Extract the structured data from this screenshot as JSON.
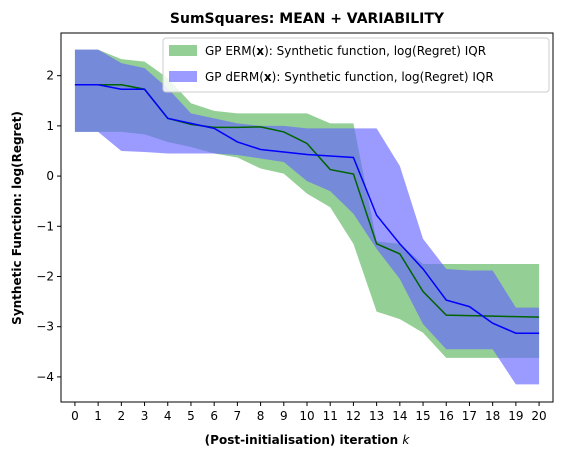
{
  "chart_data": {
    "type": "area",
    "title": "SumSquares: MEAN + VARIABILITY",
    "xlabel": "(Post-initialisation) iteration",
    "xlabel_var": "k",
    "ylabel": "Synthetic Function: log(Regret)",
    "xlim": [
      -0.6,
      20.6
    ],
    "ylim": [
      -4.5,
      2.85
    ],
    "xticks": [
      0,
      1,
      2,
      3,
      4,
      5,
      6,
      7,
      8,
      9,
      10,
      11,
      12,
      13,
      14,
      15,
      16,
      17,
      18,
      19,
      20
    ],
    "yticks": [
      -4,
      -3,
      -2,
      -1,
      0,
      1,
      2
    ],
    "ytick_labels": [
      "−4",
      "−3",
      "−2",
      "−1",
      "0",
      "1",
      "2"
    ],
    "legend_position": "top-right",
    "x": [
      0,
      1,
      2,
      3,
      4,
      5,
      6,
      7,
      8,
      9,
      10,
      11,
      12,
      13,
      14,
      15,
      16,
      17,
      18,
      19,
      20
    ],
    "series": [
      {
        "name_prefix": "GP ERM(",
        "name_var": "x",
        "name_suffix": "):   Synthetic function, log(Regret) IQR",
        "band_color": "#4caf50",
        "band_opacity": 0.6,
        "line_color": "#006400",
        "lower": [
          0.88,
          0.88,
          0.88,
          0.83,
          0.68,
          0.58,
          0.45,
          0.37,
          0.15,
          0.05,
          -0.35,
          -0.62,
          -1.35,
          -2.7,
          -2.85,
          -3.12,
          -3.62,
          -3.62,
          -3.62,
          -3.62,
          -3.62
        ],
        "upper": [
          2.52,
          2.52,
          2.33,
          2.28,
          1.95,
          1.45,
          1.3,
          1.25,
          1.25,
          1.25,
          1.25,
          1.05,
          1.05,
          -1.3,
          -1.35,
          -1.75,
          -1.75,
          -1.75,
          -1.75,
          -1.75,
          -1.75
        ],
        "mean": [
          1.82,
          1.82,
          1.82,
          1.73,
          1.15,
          1.03,
          0.97,
          0.97,
          0.98,
          0.88,
          0.65,
          0.13,
          0.04,
          -1.35,
          -1.55,
          -2.3,
          -2.77,
          -2.78,
          -2.79,
          -2.8,
          -2.81
        ]
      },
      {
        "name_prefix": "GP dERM(",
        "name_var": "x",
        "name_suffix": "): Synthetic function, log(Regret) IQR",
        "band_color": "#6666ff",
        "band_opacity": 0.65,
        "line_color": "#0000ff",
        "lower": [
          0.88,
          0.88,
          0.5,
          0.48,
          0.45,
          0.45,
          0.45,
          0.42,
          0.35,
          0.28,
          -0.1,
          -0.3,
          -0.75,
          -1.45,
          -2.05,
          -2.95,
          -3.45,
          -3.45,
          -3.45,
          -4.15,
          -4.15
        ],
        "upper": [
          2.52,
          2.52,
          2.25,
          2.15,
          1.75,
          1.25,
          1.15,
          1.05,
          1.0,
          1.0,
          0.95,
          0.95,
          0.95,
          0.95,
          0.2,
          -1.25,
          -1.85,
          -1.88,
          -1.88,
          -2.62,
          -2.62
        ],
        "mean": [
          1.82,
          1.82,
          1.73,
          1.73,
          1.15,
          1.05,
          0.95,
          0.68,
          0.53,
          0.48,
          0.43,
          0.4,
          0.37,
          -0.78,
          -1.35,
          -1.85,
          -2.47,
          -2.6,
          -2.93,
          -3.13,
          -3.13
        ]
      }
    ]
  }
}
